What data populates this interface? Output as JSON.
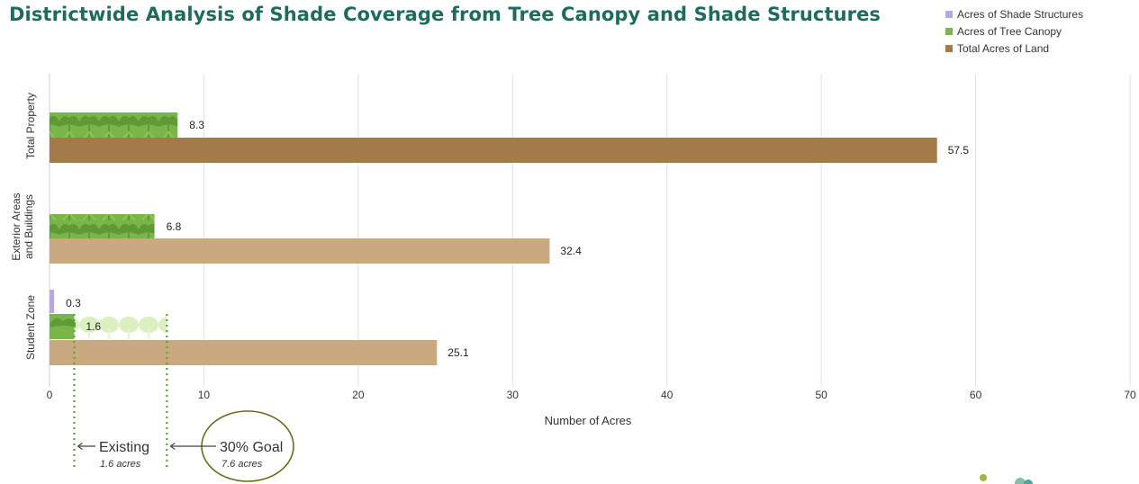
{
  "title": "Districtwide Analysis of Shade Coverage from Tree Canopy and Shade Structures",
  "legend": [
    {
      "label": "Acres of Shade Structures",
      "color": "#b9a6e8"
    },
    {
      "label": "Acres of Tree Canopy",
      "color": "#7ab547"
    },
    {
      "label": "Total Acres of Land",
      "color": "#a37a4a"
    }
  ],
  "chart_data": {
    "type": "bar",
    "orientation": "horizontal",
    "xlabel": "Number of Acres",
    "xlim": [
      0,
      70
    ],
    "xticks": [
      0,
      10,
      20,
      30,
      40,
      50,
      60,
      70
    ],
    "grid": true,
    "legend_position": "top-right",
    "categories": [
      {
        "label_lines": [
          "Total Property"
        ]
      },
      {
        "label_lines": [
          "Exterior Areas",
          "and Buildings"
        ]
      },
      {
        "label_lines": [
          "Student Zone"
        ]
      }
    ],
    "series": [
      {
        "name": "Acres of Shade Structures",
        "values": [
          null,
          null,
          0.3
        ]
      },
      {
        "name": "Acres of Tree Canopy",
        "values": [
          8.3,
          6.8,
          1.6
        ]
      },
      {
        "name": "Total Acres of Land",
        "values": [
          57.5,
          32.4,
          25.1
        ]
      }
    ],
    "goal_projection": {
      "category": "Student Zone",
      "value": 7.6
    }
  },
  "annotations": {
    "existing": {
      "label": "Existing",
      "sub": "1.6 acres",
      "value": 1.6
    },
    "goal": {
      "label": "30% Goal",
      "sub": "7.6 acres",
      "value": 7.6
    }
  },
  "colors": {
    "title": "#1f6b5f",
    "canopy": "#7ab547",
    "canopy_dark": "#5f9a36",
    "canopy_goal": "#dcefc0",
    "land_total": "#a37a4a",
    "land_other": "#c9a97f",
    "structures": "#b9a6e8",
    "grid": "#e2e2e2",
    "guide": "#5aa832",
    "circle": "#6b6b1a"
  }
}
